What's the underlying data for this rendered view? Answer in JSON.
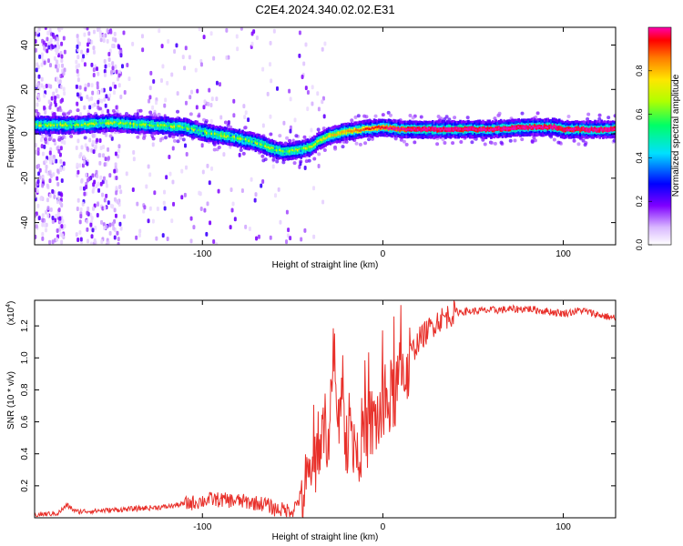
{
  "title": "C2E4.2024.340.02.02.E31",
  "chart_data": [
    {
      "type": "heatmap",
      "xlabel": "Height of straight line (km)",
      "ylabel": "Frequency (Hz)",
      "xlim": [
        -193,
        129
      ],
      "ylim": [
        -50,
        48
      ],
      "xticks": [
        -100,
        0,
        100
      ],
      "yticks": [
        -40,
        -20,
        0,
        20,
        40
      ],
      "ridge": {
        "x": [
          -190,
          -170,
          -150,
          -130,
          -110,
          -95,
          -80,
          -70,
          -60,
          -55,
          -45,
          -40,
          -35,
          -30,
          -20,
          -10,
          0,
          10,
          30,
          60,
          80,
          95,
          100,
          110,
          129
        ],
        "frequency": [
          4,
          4,
          5,
          4,
          3,
          0,
          -2,
          -4,
          -7,
          -8,
          -7,
          -6,
          -3,
          -1,
          1,
          2,
          3,
          2,
          2,
          2,
          3,
          3,
          2,
          2,
          2
        ]
      },
      "colorbar": {
        "label": "Normalized spectral amplitude",
        "ticks": [
          "0.0",
          "0.2",
          "0.4",
          "0.6",
          "0.8"
        ],
        "range": [
          0,
          1
        ]
      }
    },
    {
      "type": "line",
      "xlabel": "Height of straight line (km)",
      "ylabel": "SNR (10 * v/v)",
      "scale_label": "(x10",
      "scale_exponent": "4",
      "xlim": [
        -193,
        129
      ],
      "ylim": [
        0,
        1.36
      ],
      "xticks": [
        -100,
        0,
        100
      ],
      "yticks": [
        0.2,
        0.4,
        0.6,
        0.8,
        1.0,
        1.2
      ],
      "color": "#e8302a",
      "series_envelope": {
        "x": [
          -193,
          -180,
          -175,
          -170,
          -150,
          -120,
          -105,
          -95,
          -80,
          -65,
          -60,
          -50,
          -45,
          -40,
          -35,
          -30,
          -28,
          -25,
          -20,
          -15,
          -10,
          -5,
          0,
          5,
          10,
          15,
          20,
          30,
          40,
          60,
          80,
          100,
          110,
          120,
          129
        ],
        "snr": [
          0.02,
          0.03,
          0.08,
          0.04,
          0.05,
          0.07,
          0.1,
          0.12,
          0.11,
          0.09,
          0.06,
          0.05,
          0.15,
          0.28,
          0.48,
          0.62,
          0.84,
          0.72,
          0.55,
          0.48,
          0.55,
          0.62,
          0.68,
          0.78,
          0.9,
          1.02,
          1.12,
          1.24,
          1.29,
          1.3,
          1.31,
          1.28,
          1.3,
          1.27,
          1.25
        ]
      }
    }
  ]
}
